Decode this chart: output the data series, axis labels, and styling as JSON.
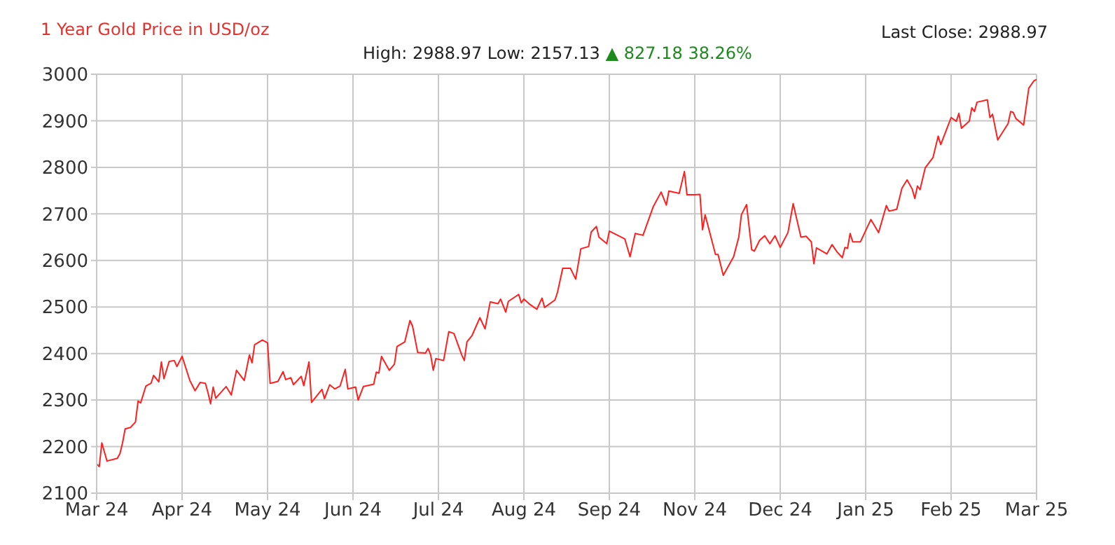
{
  "chart_data": {
    "type": "line",
    "title": "1 Year Gold Price in USD/oz",
    "subtitle": "High: 2988.97 Low: 2157.13",
    "annotations": [
      "▲ 827.18 38.26%",
      "Last Close: 2988.97"
    ],
    "x": [
      "2024-03-15",
      "2024-03-16",
      "2024-03-17",
      "2024-03-19",
      "2024-03-23",
      "2024-03-24",
      "2024-03-25",
      "2024-03-26",
      "2024-03-28",
      "2024-03-30",
      "2024-03-31",
      "2024-04-01",
      "2024-04-03",
      "2024-04-05",
      "2024-04-06",
      "2024-04-08",
      "2024-04-09",
      "2024-04-10",
      "2024-04-12",
      "2024-04-14",
      "2024-04-15",
      "2024-04-17",
      "2024-04-20",
      "2024-04-22",
      "2024-04-24",
      "2024-04-26",
      "2024-04-27",
      "2024-04-28",
      "2024-04-29",
      "2024-04-30",
      "2024-05-04",
      "2024-05-06",
      "2024-05-08",
      "2024-05-11",
      "2024-05-13",
      "2024-05-14",
      "2024-05-15",
      "2024-05-18",
      "2024-05-20",
      "2024-05-21",
      "2024-05-24",
      "2024-05-26",
      "2024-05-27",
      "2024-05-29",
      "2024-05-30",
      "2024-06-02",
      "2024-06-03",
      "2024-06-05",
      "2024-06-06",
      "2024-06-10",
      "2024-06-11",
      "2024-06-13",
      "2024-06-15",
      "2024-06-17",
      "2024-06-19",
      "2024-06-20",
      "2024-06-23",
      "2024-06-24",
      "2024-06-26",
      "2024-06-30",
      "2024-07-01",
      "2024-07-02",
      "2024-07-03",
      "2024-07-06",
      "2024-07-08",
      "2024-07-09",
      "2024-07-12",
      "2024-07-14",
      "2024-07-15",
      "2024-07-17",
      "2024-07-20",
      "2024-07-21",
      "2024-07-22",
      "2024-07-23",
      "2024-07-24",
      "2024-07-27",
      "2024-07-29",
      "2024-07-31",
      "2024-08-03",
      "2024-08-04",
      "2024-08-05",
      "2024-08-07",
      "2024-08-10",
      "2024-08-12",
      "2024-08-14",
      "2024-08-17",
      "2024-08-18",
      "2024-08-20",
      "2024-08-21",
      "2024-08-25",
      "2024-08-26",
      "2024-08-27",
      "2024-08-29",
      "2024-09-01",
      "2024-09-03",
      "2024-09-04",
      "2024-09-08",
      "2024-09-09",
      "2024-09-11",
      "2024-09-14",
      "2024-09-16",
      "2024-09-18",
      "2024-09-21",
      "2024-09-22",
      "2024-09-24",
      "2024-09-25",
      "2024-09-28",
      "2024-09-29",
      "2024-10-05",
      "2024-10-07",
      "2024-10-09",
      "2024-10-12",
      "2024-10-16",
      "2024-10-19",
      "2024-10-21",
      "2024-10-22",
      "2024-10-26",
      "2024-10-28",
      "2024-10-29",
      "2024-11-01",
      "2024-11-03",
      "2024-11-04",
      "2024-11-05",
      "2024-11-09",
      "2024-11-10",
      "2024-11-12",
      "2024-11-16",
      "2024-11-18",
      "2024-11-19",
      "2024-11-21",
      "2024-11-23",
      "2024-11-24",
      "2024-11-26",
      "2024-11-28",
      "2024-11-30",
      "2024-12-02",
      "2024-12-04",
      "2024-12-07",
      "2024-12-09",
      "2024-12-12",
      "2024-12-14",
      "2024-12-16",
      "2024-12-17",
      "2024-12-18",
      "2024-12-22",
      "2024-12-24",
      "2024-12-26",
      "2024-12-28",
      "2024-12-29",
      "2024-12-30",
      "2024-12-31",
      "2025-01-01",
      "2025-01-04",
      "2025-01-08",
      "2025-01-11",
      "2025-01-14",
      "2025-01-15",
      "2025-01-18",
      "2025-01-20",
      "2025-01-22",
      "2025-01-24",
      "2025-01-25",
      "2025-01-26",
      "2025-01-27",
      "2025-01-29",
      "2025-02-01",
      "2025-02-03",
      "2025-02-04",
      "2025-02-08",
      "2025-02-10",
      "2025-02-11",
      "2025-02-12",
      "2025-02-15",
      "2025-02-16",
      "2025-02-17",
      "2025-02-18",
      "2025-02-22",
      "2025-02-23",
      "2025-02-24",
      "2025-02-26",
      "2025-03-02",
      "2025-03-03",
      "2025-03-04",
      "2025-03-05",
      "2025-03-08",
      "2025-03-10",
      "2025-03-12",
      "2025-03-13"
    ],
    "values": [
      2163,
      2157,
      2208,
      2169,
      2175,
      2185,
      2208,
      2238,
      2241,
      2253,
      2298,
      2294,
      2330,
      2336,
      2353,
      2339,
      2382,
      2346,
      2383,
      2385,
      2372,
      2394,
      2342,
      2320,
      2338,
      2336,
      2316,
      2292,
      2328,
      2304,
      2329,
      2311,
      2364,
      2342,
      2397,
      2380,
      2419,
      2429,
      2423,
      2336,
      2340,
      2361,
      2344,
      2348,
      2333,
      2351,
      2331,
      2382,
      2295,
      2323,
      2303,
      2333,
      2324,
      2330,
      2366,
      2324,
      2328,
      2300,
      2329,
      2334,
      2360,
      2358,
      2394,
      2364,
      2377,
      2415,
      2425,
      2471,
      2459,
      2402,
      2401,
      2411,
      2397,
      2364,
      2389,
      2385,
      2447,
      2443,
      2397,
      2385,
      2425,
      2439,
      2477,
      2453,
      2511,
      2507,
      2517,
      2489,
      2512,
      2527,
      2509,
      2517,
      2507,
      2495,
      2519,
      2499,
      2515,
      2532,
      2583,
      2583,
      2560,
      2625,
      2630,
      2661,
      2673,
      2650,
      2636,
      2663,
      2646,
      2608,
      2658,
      2654,
      2716,
      2747,
      2719,
      2749,
      2744,
      2791,
      2741,
      2741,
      2742,
      2666,
      2698,
      2613,
      2613,
      2568,
      2608,
      2650,
      2698,
      2720,
      2623,
      2620,
      2643,
      2653,
      2636,
      2653,
      2628,
      2660,
      2722,
      2650,
      2652,
      2640,
      2593,
      2627,
      2614,
      2634,
      2618,
      2606,
      2628,
      2626,
      2658,
      2640,
      2640,
      2688,
      2660,
      2718,
      2706,
      2710,
      2755,
      2773,
      2753,
      2733,
      2760,
      2752,
      2799,
      2821,
      2867,
      2849,
      2907,
      2899,
      2916,
      2884,
      2899,
      2928,
      2920,
      2940,
      2945,
      2907,
      2914,
      2859,
      2894,
      2920,
      2918,
      2905,
      2891,
      2970,
      2986,
      2989
    ],
    "color": "#ff1f1f",
    "xlim": [
      "2024-03-15",
      "2025-03-13"
    ],
    "xticks": [
      {
        "value": "2024-03-15",
        "label": "Mar 24"
      },
      {
        "value": "2024-04-17",
        "label": "Apr 24"
      },
      {
        "value": "2024-05-20",
        "label": "May 24"
      },
      {
        "value": "2024-06-22",
        "label": "Jun 24"
      },
      {
        "value": "2024-07-25",
        "label": "Jul 24"
      },
      {
        "value": "2024-08-27",
        "label": "Aug 24"
      },
      {
        "value": "2024-09-29",
        "label": "Sep 24"
      },
      {
        "value": "2024-11-01",
        "label": "Nov 24"
      },
      {
        "value": "2024-12-04",
        "label": "Dec 24"
      },
      {
        "value": "2025-01-06",
        "label": "Jan 25"
      },
      {
        "value": "2025-02-08",
        "label": "Feb 25"
      },
      {
        "value": "2025-03-13",
        "label": "Mar 25"
      }
    ],
    "ylim": [
      2100,
      3000
    ],
    "yticks": [
      2100,
      2200,
      2300,
      2400,
      2500,
      2600,
      2700,
      2800,
      2900,
      3000
    ],
    "grid": true
  }
}
